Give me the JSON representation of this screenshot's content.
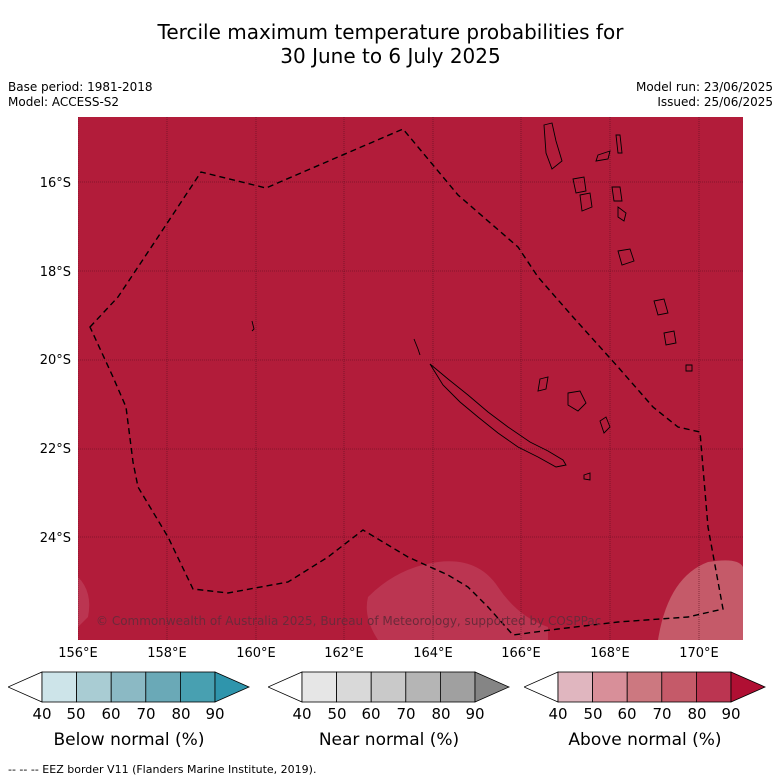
{
  "title": {
    "line1": "Tercile maximum temperature probabilities for",
    "line2": "30 June to 6 July 2025"
  },
  "meta_left": {
    "base_period": "Base period: 1981-2018",
    "model": "Model: ACCESS-S2"
  },
  "meta_right": {
    "model_run": "Model run: 23/06/2025",
    "issued": "Issued: 25/06/2025"
  },
  "map": {
    "fill_color": "#b21c3a",
    "lat_labels": [
      "16°S",
      "18°S",
      "20°S",
      "22°S",
      "24°S"
    ],
    "lon_labels": [
      "156°E",
      "158°E",
      "160°E",
      "162°E",
      "164°E",
      "166°E",
      "168°E",
      "170°E"
    ],
    "copyright": "© Commonwealth of Australia 2025, Bureau of Meteorology, supported by COSPPac"
  },
  "colorbars": [
    {
      "label": "Below normal (%)",
      "ticks": [
        "40",
        "50",
        "60",
        "70",
        "80",
        "90"
      ],
      "colors": [
        "#cde4e9",
        "#a9ccd3",
        "#8bb9c4",
        "#6aa9b7",
        "#48a0b1",
        "#2f95ac"
      ]
    },
    {
      "label": "Near normal (%)",
      "ticks": [
        "40",
        "50",
        "60",
        "70",
        "80",
        "90"
      ],
      "colors": [
        "#e6e6e6",
        "#d9d9d9",
        "#c9c9c9",
        "#b5b5b5",
        "#a0a0a0",
        "#858585"
      ]
    },
    {
      "label": "Above normal (%)",
      "ticks": [
        "40",
        "50",
        "60",
        "70",
        "80",
        "90"
      ],
      "colors": [
        "#e0b6bf",
        "#d88f99",
        "#cc7880",
        "#c55a69",
        "#bb3551",
        "#b00f33"
      ]
    }
  ],
  "footer": "--  --  -- EEZ border V11 (Flanders Marine Institute, 2019)."
}
